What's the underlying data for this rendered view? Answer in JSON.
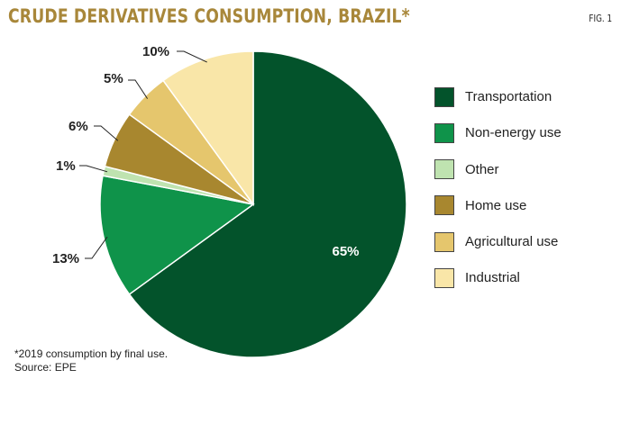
{
  "header": {
    "title": "CRUDE DERIVATIVES CONSUMPTION, BRAZIL*",
    "fig_label": "FIG. 1"
  },
  "notes": {
    "footnote": "*2019 consumption by final use.",
    "source": "Source: EPE"
  },
  "colors": {
    "transportation": "#03532b",
    "non_energy": "#0f934a",
    "other": "#bfe3b0",
    "home": "#a8872f",
    "agricultural": "#e5c66d",
    "industrial": "#f9e6a8"
  },
  "chart_data": {
    "type": "pie",
    "title": "CRUDE DERIVATIVES CONSUMPTION, BRAZIL*",
    "start": "12 o'clock, clockwise",
    "legend_position": "right",
    "slices": [
      {
        "name": "Transportation",
        "value": 65,
        "label": "65%",
        "color": "#03532b"
      },
      {
        "name": "Non-energy use",
        "value": 13,
        "label": "13%",
        "color": "#0f934a"
      },
      {
        "name": "Other",
        "value": 1,
        "label": "1%",
        "color": "#bfe3b0"
      },
      {
        "name": "Home use",
        "value": 6,
        "label": "6%",
        "color": "#a8872f"
      },
      {
        "name": "Agricultural use",
        "value": 5,
        "label": "5%",
        "color": "#e5c66d"
      },
      {
        "name": "Industrial",
        "value": 10,
        "label": "10%",
        "color": "#f9e6a8"
      }
    ]
  }
}
